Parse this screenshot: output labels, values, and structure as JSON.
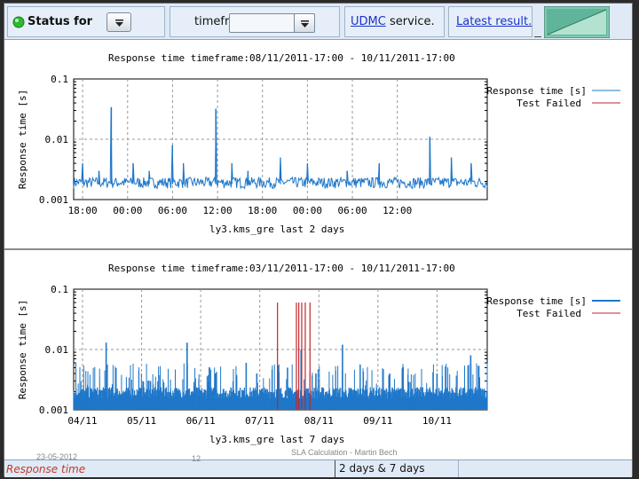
{
  "toolbar": {
    "status_label": "Status for",
    "timeframe_label": "timeframe",
    "service_link": "UDMC",
    "service_suffix": "service.",
    "latest_result": "Latest result."
  },
  "footer": {
    "left": "Response time",
    "right": "2 days & 7 days",
    "date": "23-05-2012",
    "page": "12",
    "title": "SLA Calculation - Martin Bech"
  },
  "colors": {
    "response_series": "#1f77c9",
    "failed_series": "#c0262b",
    "status_dot": "#2dbb2d"
  },
  "chart_data": [
    {
      "type": "line",
      "title": "Response time timeframe:08/11/2011-17:00 - 10/11/2011-17:00",
      "xlabel": "ly3.kms_gre last 2 days",
      "ylabel": "Response time [s]",
      "yscale": "log",
      "ylim": [
        0.001,
        0.1
      ],
      "yticks": [
        "0.001",
        "0.01",
        "0.1"
      ],
      "xticks": [
        "18:00",
        "00:00",
        "06:00",
        "12:00",
        "18:00",
        "00:00",
        "06:00",
        "12:00"
      ],
      "legend": [
        "Response time [s]",
        "Test Failed"
      ],
      "legend_position": "top-right",
      "grid": true,
      "series": [
        {
          "name": "Response time [s]",
          "baseline": 0.0018,
          "spikes": [
            [
              0.21,
              0.034
            ],
            [
              0.05,
              0.004
            ],
            [
              0.14,
              0.003
            ],
            [
              0.33,
              0.004
            ],
            [
              0.42,
              0.003
            ],
            [
              0.55,
              0.008
            ],
            [
              0.61,
              0.004
            ],
            [
              0.79,
              0.032
            ],
            [
              0.88,
              0.004
            ],
            [
              0.97,
              0.003
            ],
            [
              1.15,
              0.005
            ],
            [
              1.3,
              0.004
            ],
            [
              1.52,
              0.003
            ],
            [
              1.7,
              0.004
            ],
            [
              1.98,
              0.011
            ],
            [
              2.1,
              0.005
            ],
            [
              2.21,
              0.004
            ]
          ]
        },
        {
          "name": "Test Failed",
          "values": []
        }
      ]
    },
    {
      "type": "line",
      "title": "Response time timeframe:03/11/2011-17:00 - 10/11/2011-17:00",
      "xlabel": "ly3.kms_gre last 7 days",
      "ylabel": "Response time [s]",
      "yscale": "log",
      "ylim": [
        0.001,
        0.1
      ],
      "yticks": [
        "0.001",
        "0.01",
        "0.1"
      ],
      "xticks": [
        "04/11",
        "05/11",
        "06/11",
        "07/11",
        "08/11",
        "09/11",
        "10/11"
      ],
      "legend": [
        "Response time [s]",
        "Test Failed"
      ],
      "legend_position": "top-right",
      "grid": true,
      "series": [
        {
          "name": "Response time [s]",
          "baseline": 0.0017,
          "spikes": [
            [
              0.55,
              0.013
            ],
            [
              1.3,
              0.003
            ],
            [
              1.92,
              0.013
            ],
            [
              2.3,
              0.005
            ],
            [
              2.4,
              0.004
            ],
            [
              2.92,
              0.006
            ],
            [
              3.1,
              0.004
            ],
            [
              3.62,
              0.005
            ],
            [
              3.85,
              0.01
            ],
            [
              4.1,
              0.004
            ],
            [
              4.55,
              0.012
            ],
            [
              5.35,
              0.004
            ],
            [
              6.15,
              0.004
            ],
            [
              6.72,
              0.008
            ]
          ]
        },
        {
          "name": "Test Failed",
          "x_days": [
            3.45,
            3.77,
            3.81,
            3.86,
            3.92,
            4.0
          ]
        }
      ]
    }
  ]
}
